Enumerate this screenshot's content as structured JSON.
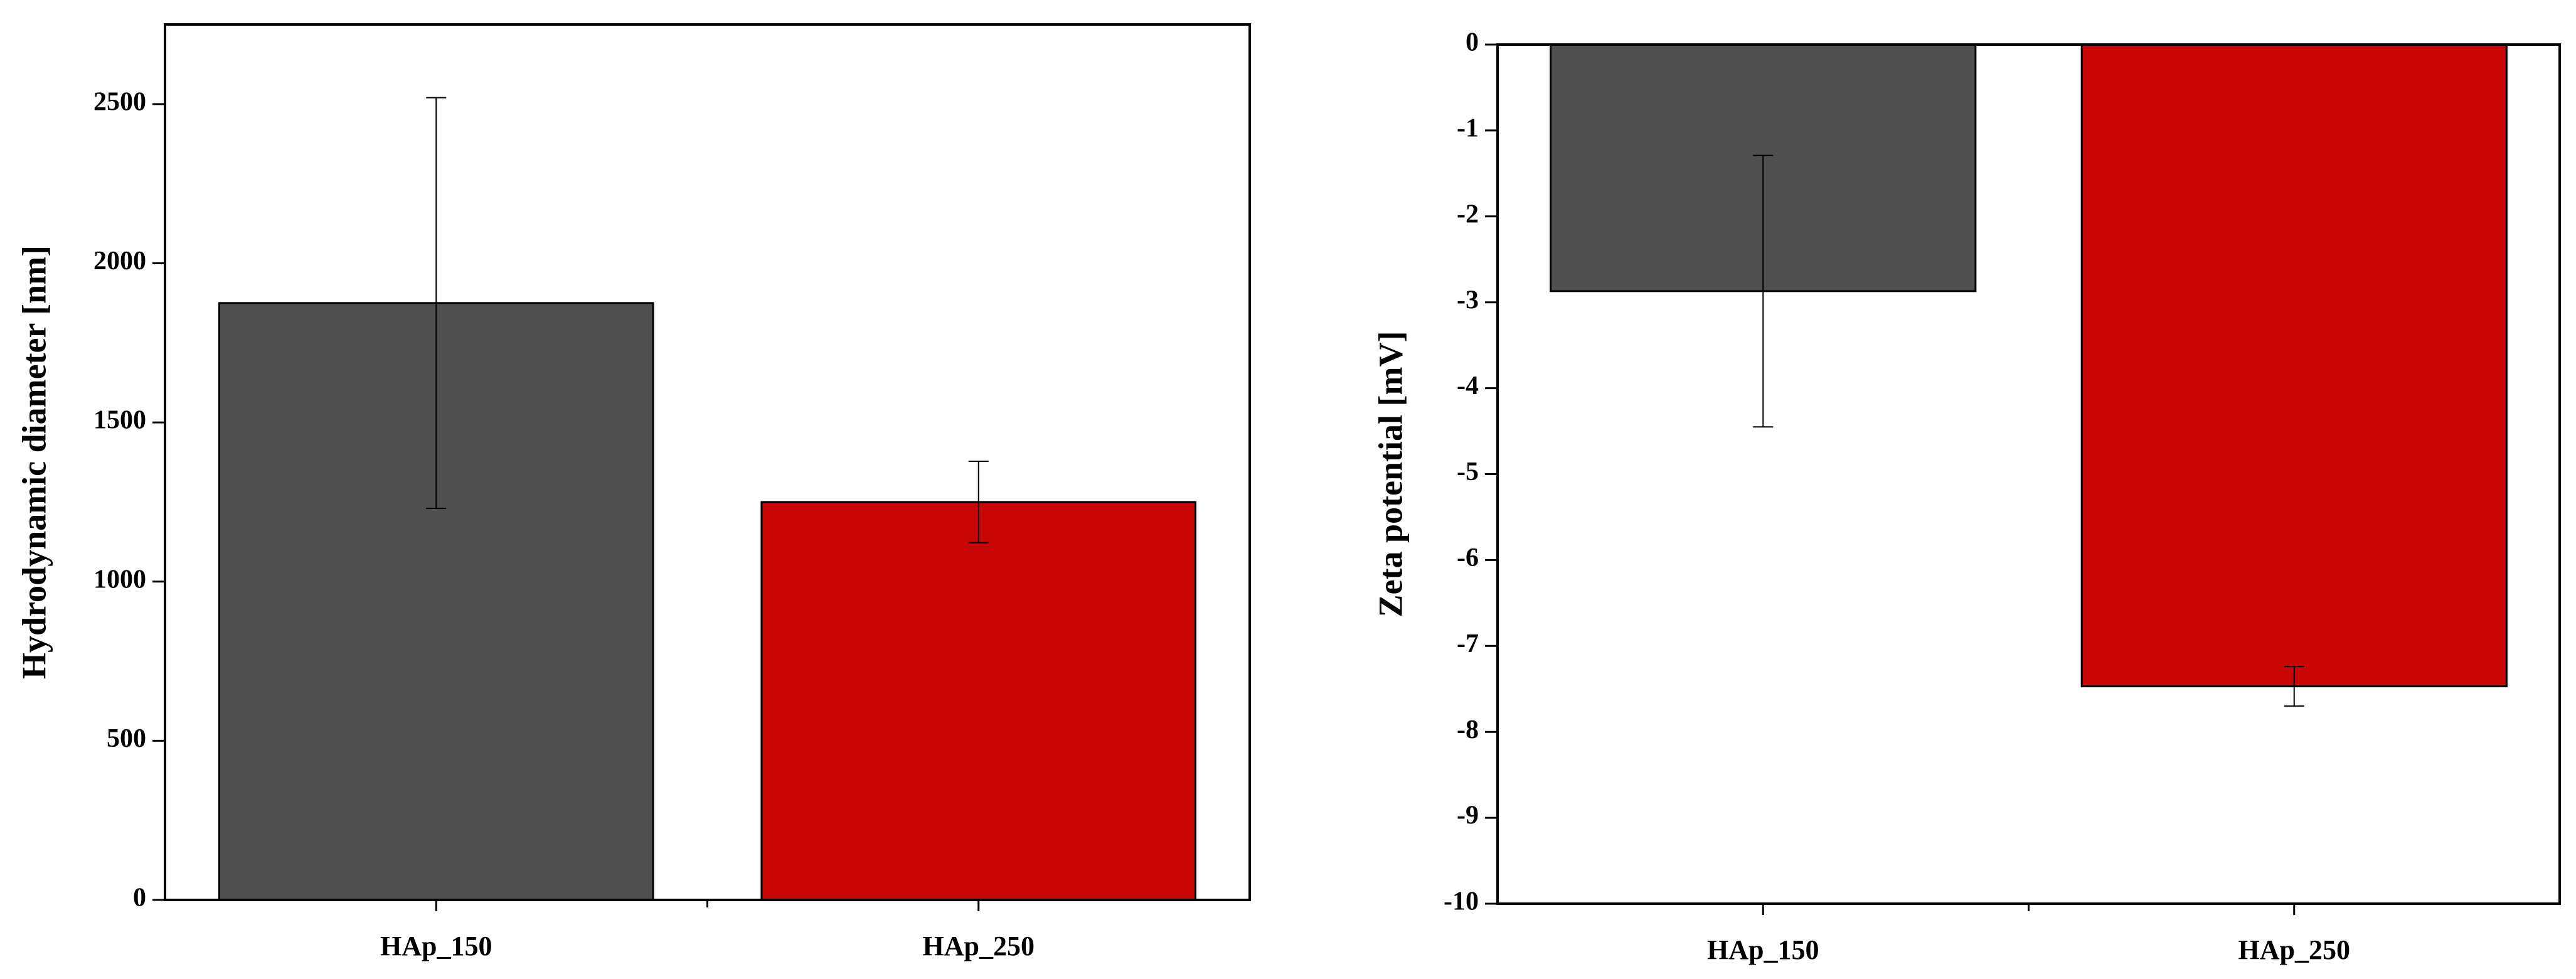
{
  "chart_data": [
    {
      "type": "bar",
      "ylabel": "Hydrodynamic diameter [nm]",
      "categories": [
        "HAp_150",
        "HAp_250"
      ],
      "values": [
        1875,
        1250
      ],
      "errors": [
        645,
        128
      ],
      "colors": [
        "#505050",
        "#c80606"
      ],
      "ylim": [
        0,
        2750
      ],
      "yticks": [
        0,
        500,
        1000,
        1500,
        2000,
        2500
      ]
    },
    {
      "type": "bar",
      "ylabel": "Zeta potential [mV]",
      "categories": [
        "HAp_150",
        "HAp_250"
      ],
      "values": [
        -2.87,
        -7.47
      ],
      "errors": [
        1.58,
        0.23
      ],
      "colors": [
        "#505050",
        "#c80606"
      ],
      "ylim": [
        -10,
        0
      ],
      "yticks": [
        -10,
        -9,
        -8,
        -7,
        -6,
        -5,
        -4,
        -3,
        -2,
        -1,
        0
      ]
    }
  ]
}
